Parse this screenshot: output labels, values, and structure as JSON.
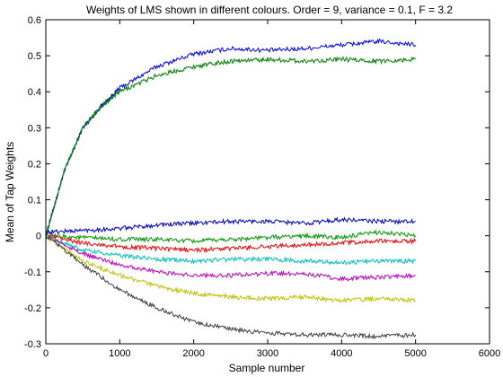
{
  "chart_data": {
    "type": "line",
    "title": "Weights of LMS shown in different colours. Order = 9, variance = 0.1, F = 3.2",
    "xlabel": "Sample number",
    "ylabel": "Mean of Tap Weights",
    "xlim": [
      0,
      6000
    ],
    "ylim": [
      -0.3,
      0.6
    ],
    "x_ticks": [
      0,
      1000,
      2000,
      3000,
      4000,
      5000,
      6000
    ],
    "y_ticks": [
      -0.3,
      -0.2,
      -0.1,
      0,
      0.1,
      0.2,
      0.3,
      0.4,
      0.5,
      0.6
    ],
    "x_tick_labels": [
      "0",
      "1000",
      "2000",
      "3000",
      "4000",
      "5000",
      "6000"
    ],
    "y_tick_labels": [
      "-0.3",
      "-0.2",
      "-0.1",
      "0",
      "0.1",
      "0.2",
      "0.3",
      "0.4",
      "0.5",
      "0.6"
    ],
    "grid": false,
    "legend": "none",
    "series": [
      {
        "color": "#0000ff",
        "x": [
          0,
          250,
          500,
          750,
          1000,
          1500,
          2000,
          2500,
          3000,
          3500,
          4000,
          4500,
          5000
        ],
        "y": [
          0.0,
          0.18,
          0.3,
          0.36,
          0.41,
          0.47,
          0.505,
          0.52,
          0.515,
          0.52,
          0.53,
          0.54,
          0.53
        ]
      },
      {
        "color": "#008000",
        "x": [
          0,
          250,
          500,
          750,
          1000,
          1500,
          2000,
          2500,
          3000,
          3500,
          4000,
          4500,
          5000
        ],
        "y": [
          0.0,
          0.18,
          0.3,
          0.36,
          0.4,
          0.445,
          0.47,
          0.485,
          0.49,
          0.485,
          0.49,
          0.485,
          0.49
        ]
      },
      {
        "color": "#0000cc",
        "x": [
          0,
          500,
          1000,
          1500,
          2000,
          2500,
          3000,
          3500,
          4000,
          4500,
          5000
        ],
        "y": [
          0.01,
          0.015,
          0.02,
          0.03,
          0.035,
          0.04,
          0.04,
          0.035,
          0.045,
          0.04,
          0.04
        ]
      },
      {
        "color": "#009900",
        "x": [
          0,
          500,
          1000,
          1500,
          2000,
          2500,
          3000,
          3500,
          4000,
          4500,
          5000
        ],
        "y": [
          0.0,
          -0.005,
          -0.01,
          -0.01,
          -0.015,
          -0.01,
          -0.005,
          0.0,
          -0.005,
          0.01,
          0.0
        ]
      },
      {
        "color": "#ff0000",
        "x": [
          0,
          500,
          1000,
          1500,
          2000,
          2500,
          3000,
          3500,
          4000,
          4500,
          5000
        ],
        "y": [
          0.0,
          -0.02,
          -0.03,
          -0.035,
          -0.04,
          -0.035,
          -0.03,
          -0.025,
          -0.02,
          -0.015,
          -0.015
        ]
      },
      {
        "color": "#00bfbf",
        "x": [
          0,
          500,
          1000,
          1500,
          2000,
          2500,
          3000,
          3500,
          4000,
          4500,
          5000
        ],
        "y": [
          0.0,
          -0.04,
          -0.055,
          -0.065,
          -0.07,
          -0.065,
          -0.065,
          -0.07,
          -0.075,
          -0.07,
          -0.07
        ]
      },
      {
        "color": "#bf00bf",
        "x": [
          0,
          500,
          1000,
          1500,
          2000,
          2500,
          3000,
          3500,
          4000,
          4500,
          5000
        ],
        "y": [
          0.0,
          -0.05,
          -0.08,
          -0.1,
          -0.11,
          -0.11,
          -0.105,
          -0.105,
          -0.12,
          -0.115,
          -0.11
        ]
      },
      {
        "color": "#bfbf00",
        "x": [
          0,
          500,
          1000,
          1500,
          2000,
          2500,
          3000,
          3500,
          4000,
          4500,
          5000
        ],
        "y": [
          0.0,
          -0.07,
          -0.11,
          -0.14,
          -0.16,
          -0.17,
          -0.175,
          -0.17,
          -0.18,
          -0.175,
          -0.18
        ]
      },
      {
        "color": "#404040",
        "x": [
          0,
          500,
          1000,
          1500,
          2000,
          2500,
          3000,
          3500,
          4000,
          4500,
          5000
        ],
        "y": [
          0.0,
          -0.08,
          -0.15,
          -0.2,
          -0.24,
          -0.26,
          -0.27,
          -0.275,
          -0.275,
          -0.28,
          -0.275
        ]
      }
    ]
  }
}
